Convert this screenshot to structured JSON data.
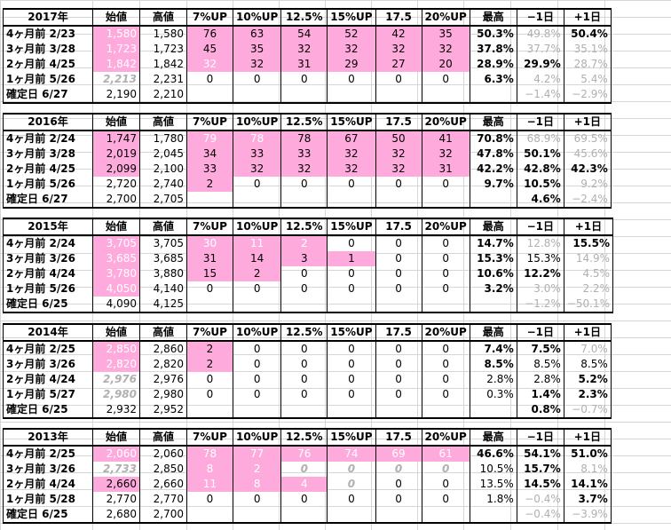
{
  "headers": [
    "始値",
    "高値",
    "7%UP",
    "10%UP",
    "12.5%",
    "15%UP",
    "17.5",
    "20%UP",
    "最高",
    "−1日",
    "+1日"
  ],
  "blocks": [
    {
      "year": "2017年",
      "rows": [
        {
          "label": "4ヶ月前  2/23",
          "start": "1,580",
          "high": "1,580",
          "u7": "76",
          "u10": "63",
          "u125": "54",
          "u15": "52",
          "u175": "42",
          "u20": "35",
          "max": "50.3%",
          "m1": "49.8%",
          "p1": "50.4%"
        },
        {
          "label": "3ヶ月前  3/28",
          "start": "1,723",
          "high": "1,723",
          "u7": "45",
          "u10": "35",
          "u125": "32",
          "u15": "32",
          "u175": "32",
          "u20": "32",
          "max": "37.8%",
          "m1": "37.7%",
          "p1": "35.1%"
        },
        {
          "label": "2ヶ月前  4/25",
          "start": "1,842",
          "high": "1,842",
          "u7": "32",
          "u10": "32",
          "u125": "31",
          "u15": "29",
          "u175": "27",
          "u20": "20",
          "max": "28.9%",
          "m1": "29.9%",
          "p1": "28.7%"
        },
        {
          "label": "1ヶ月前  5/26",
          "start": "2,213",
          "high": "2,231",
          "u7": "0",
          "u10": "0",
          "u125": "0",
          "u15": "0",
          "u175": "0",
          "u20": "0",
          "max": "6.3%",
          "m1": "4.2%",
          "p1": "5.4%"
        },
        {
          "label": "確定日  6/27",
          "start": "2,190",
          "high": "2,210",
          "u7": "",
          "u10": "",
          "u125": "",
          "u15": "",
          "u175": "",
          "u20": "",
          "max": "",
          "m1": "−1.4%",
          "p1": "−2.9%"
        }
      ]
    },
    {
      "year": "2016年",
      "rows": [
        {
          "label": "4ヶ月前  2/24",
          "start": "1,747",
          "high": "1,780",
          "u7": "79",
          "u10": "78",
          "u125": "78",
          "u15": "67",
          "u175": "50",
          "u20": "41",
          "max": "70.8%",
          "m1": "68.9%",
          "p1": "69.5%"
        },
        {
          "label": "3ヶ月前  3/28",
          "start": "2,019",
          "high": "2,045",
          "u7": "34",
          "u10": "33",
          "u125": "33",
          "u15": "32",
          "u175": "32",
          "u20": "32",
          "max": "47.8%",
          "m1": "50.1%",
          "p1": "45.6%"
        },
        {
          "label": "2ヶ月前  4/25",
          "start": "2,099",
          "high": "2,100",
          "u7": "33",
          "u10": "32",
          "u125": "32",
          "u15": "32",
          "u175": "32",
          "u20": "31",
          "max": "42.2%",
          "m1": "42.8%",
          "p1": "42.3%"
        },
        {
          "label": "1ヶ月前  5/26",
          "start": "2,720",
          "high": "2,740",
          "u7": "2",
          "u10": "0",
          "u125": "0",
          "u15": "0",
          "u175": "0",
          "u20": "0",
          "max": "9.7%",
          "m1": "10.5%",
          "p1": "9.2%"
        },
        {
          "label": "確定日  6/27",
          "start": "2,700",
          "high": "2,705",
          "u7": "",
          "u10": "",
          "u125": "",
          "u15": "",
          "u175": "",
          "u20": "",
          "max": "",
          "m1": "4.6%",
          "p1": "−2.4%"
        }
      ]
    },
    {
      "year": "2015年",
      "rows": [
        {
          "label": "4ヶ月前  2/24",
          "start": "3,705",
          "high": "3,705",
          "u7": "30",
          "u10": "11",
          "u125": "2",
          "u15": "0",
          "u175": "0",
          "u20": "0",
          "max": "14.7%",
          "m1": "12.8%",
          "p1": "15.5%"
        },
        {
          "label": "3ヶ月前  3/26",
          "start": "3,685",
          "high": "3,685",
          "u7": "31",
          "u10": "14",
          "u125": "3",
          "u15": "1",
          "u175": "0",
          "u20": "0",
          "max": "15.3%",
          "m1": "15.3%",
          "p1": "14.9%"
        },
        {
          "label": "2ヶ月前  4/24",
          "start": "3,780",
          "high": "3,880",
          "u7": "15",
          "u10": "2",
          "u125": "0",
          "u15": "0",
          "u175": "0",
          "u20": "0",
          "max": "10.6%",
          "m1": "12.2%",
          "p1": "4.5%"
        },
        {
          "label": "1ヶ月前  5/26",
          "start": "4,050",
          "high": "4,140",
          "u7": "0",
          "u10": "0",
          "u125": "0",
          "u15": "0",
          "u175": "0",
          "u20": "0",
          "max": "3.2%",
          "m1": "3.0%",
          "p1": "2.2%"
        },
        {
          "label": "確定日  6/25",
          "start": "4,090",
          "high": "4,125",
          "u7": "",
          "u10": "",
          "u125": "",
          "u15": "",
          "u175": "",
          "u20": "",
          "max": "",
          "m1": "−1.2%",
          "p1": "−50.1%"
        }
      ]
    },
    {
      "year": "2014年",
      "rows": [
        {
          "label": "4ヶ月前  2/25",
          "start": "2,850",
          "high": "2,860",
          "u7": "2",
          "u10": "0",
          "u125": "0",
          "u15": "0",
          "u175": "0",
          "u20": "0",
          "max": "7.4%",
          "m1": "7.5%",
          "p1": "7.0%"
        },
        {
          "label": "3ヶ月前  3/26",
          "start": "2,820",
          "high": "2,820",
          "u7": "2",
          "u10": "0",
          "u125": "0",
          "u15": "0",
          "u175": "0",
          "u20": "0",
          "max": "8.5%",
          "m1": "8.5%",
          "p1": "8.5%"
        },
        {
          "label": "2ヶ月前  4/24",
          "start": "2,976",
          "high": "2,976",
          "u7": "0",
          "u10": "0",
          "u125": "0",
          "u15": "0",
          "u175": "0",
          "u20": "0",
          "max": "2.8%",
          "m1": "2.8%",
          "p1": "5.2%"
        },
        {
          "label": "1ヶ月前  5/27",
          "start": "2,980",
          "high": "2,980",
          "u7": "0",
          "u10": "0",
          "u125": "0",
          "u15": "0",
          "u175": "0",
          "u20": "0",
          "max": "0.3%",
          "m1": "1.4%",
          "p1": "2.3%"
        },
        {
          "label": "確定日  6/25",
          "start": "2,932",
          "high": "2,952",
          "u7": "",
          "u10": "",
          "u125": "",
          "u15": "",
          "u175": "",
          "u20": "",
          "max": "",
          "m1": "0.8%",
          "p1": "−0.7%"
        }
      ]
    },
    {
      "year": "2013年",
      "rows": [
        {
          "label": "4ヶ月前  2/25",
          "start": "2,060",
          "high": "2,060",
          "u7": "78",
          "u10": "77",
          "u125": "76",
          "u15": "74",
          "u175": "69",
          "u20": "61",
          "max": "46.6%",
          "m1": "54.1%",
          "p1": "51.0%"
        },
        {
          "label": "3ヶ月前  3/26",
          "start": "2,733",
          "high": "2,850",
          "u7": "8",
          "u10": "2",
          "u125": "0",
          "u15": "0",
          "u175": "0",
          "u20": "0",
          "max": "10.5%",
          "m1": "15.7%",
          "p1": "8.1%"
        },
        {
          "label": "2ヶ月前  4/24",
          "start": "2,660",
          "high": "2,660",
          "u7": "11",
          "u10": "8",
          "u125": "4",
          "u15": "0",
          "u175": "0",
          "u20": "0",
          "max": "13.5%",
          "m1": "14.5%",
          "p1": "14.1%"
        },
        {
          "label": "1ヶ月前  5/28",
          "start": "2,770",
          "high": "2,770",
          "u7": "0",
          "u10": "0",
          "u125": "0",
          "u15": "0",
          "u175": "0",
          "u20": "0",
          "max": "1.8%",
          "m1": "−0.4%",
          "p1": "3.7%"
        },
        {
          "label": "確定日  6/25",
          "start": "2,680",
          "high": "2,700",
          "u7": "",
          "u10": "",
          "u125": "",
          "u15": "",
          "u175": "",
          "u20": "",
          "max": "",
          "m1": "−0.4%",
          "p1": "−3.9%"
        }
      ]
    }
  ],
  "colors": {
    "highlight": "#ffaadc",
    "muted": "#b0b0b0",
    "grid": "#d6d6d6"
  }
}
